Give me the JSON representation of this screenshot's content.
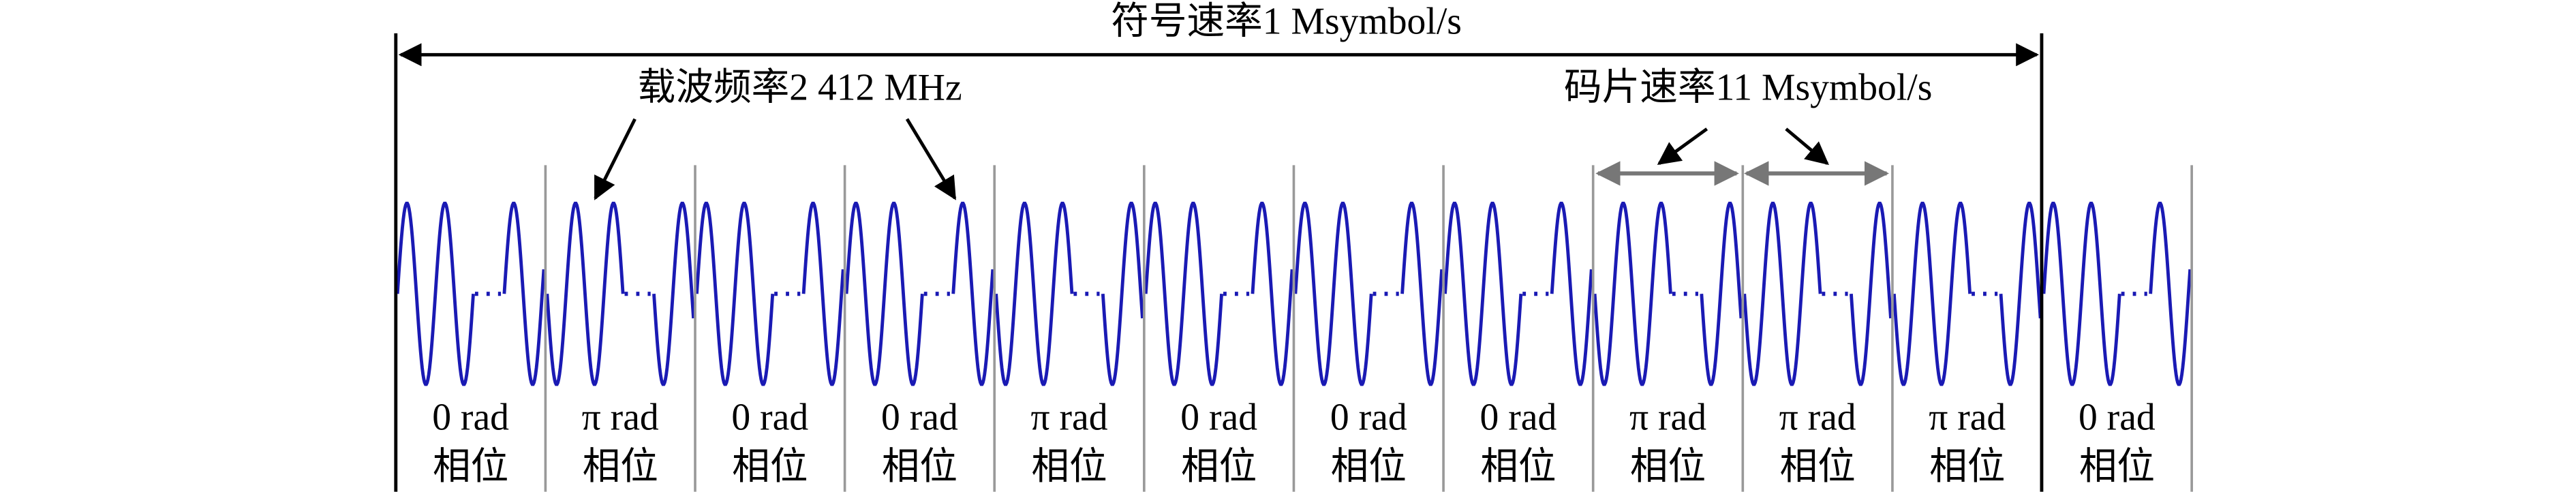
{
  "title": "符号速率1 Msymbol/s",
  "carrier_label": "载波频率2 412 MHz",
  "chip_label": "码片速率11 Msymbol/s",
  "chips": [
    {
      "phase": "0 rad",
      "label": "相位"
    },
    {
      "phase": "π rad",
      "label": "相位"
    },
    {
      "phase": "0 rad",
      "label": "相位"
    },
    {
      "phase": "0 rad",
      "label": "相位"
    },
    {
      "phase": "π rad",
      "label": "相位"
    },
    {
      "phase": "0 rad",
      "label": "相位"
    },
    {
      "phase": "0 rad",
      "label": "相位"
    },
    {
      "phase": "0 rad",
      "label": "相位"
    },
    {
      "phase": "π rad",
      "label": "相位"
    },
    {
      "phase": "π rad",
      "label": "相位"
    },
    {
      "phase": "π rad",
      "label": "相位"
    },
    {
      "phase": "0 rad",
      "label": "相位"
    }
  ]
}
